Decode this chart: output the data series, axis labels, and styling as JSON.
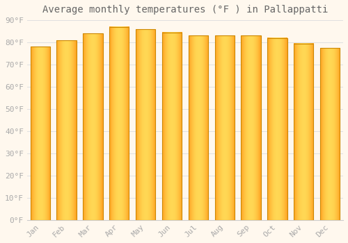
{
  "months": [
    "Jan",
    "Feb",
    "Mar",
    "Apr",
    "May",
    "Jun",
    "Jul",
    "Aug",
    "Sep",
    "Oct",
    "Nov",
    "Dec"
  ],
  "values": [
    78,
    81,
    84,
    87,
    86,
    84.5,
    83,
    83,
    83,
    82,
    79.5,
    77.5
  ],
  "background_color": "#FFF8EE",
  "grid_color": "#E0E0E0",
  "title": "Average monthly temperatures (°F ) in Pallappatti",
  "ylim": [
    0,
    90
  ],
  "yticks": [
    0,
    10,
    20,
    30,
    40,
    50,
    60,
    70,
    80,
    90
  ],
  "ytick_labels": [
    "0°F",
    "10°F",
    "20°F",
    "30°F",
    "40°F",
    "50°F",
    "60°F",
    "70°F",
    "80°F",
    "90°F"
  ],
  "title_fontsize": 10,
  "tick_fontsize": 8,
  "text_color": "#AAAAAA",
  "bar_color_center": "#FFD050",
  "bar_color_edge": "#FFA020",
  "bar_border_color": "#CC8800",
  "bar_width": 0.75
}
